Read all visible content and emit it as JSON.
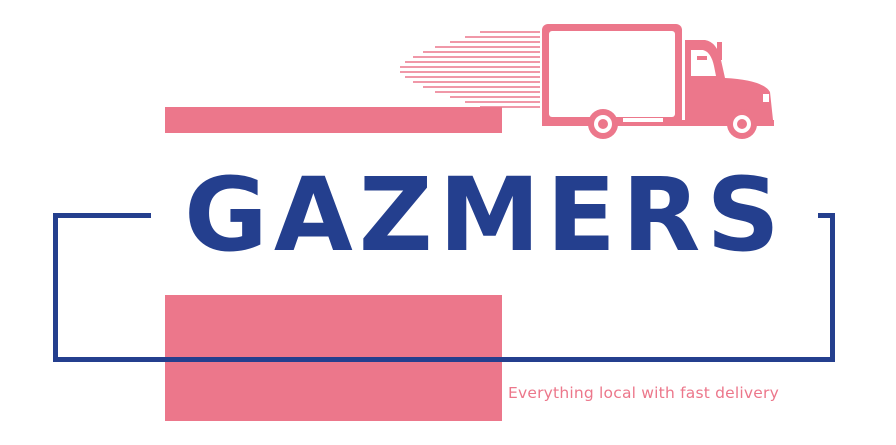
{
  "brand": {
    "name": "GAZMERS",
    "tagline": "Everything local with fast delivery"
  },
  "icons": {
    "truck": "delivery-truck-icon",
    "speed_lines": "speed-lines-icon"
  },
  "colors": {
    "primary_blue": "#243f8e",
    "accent_pink": "#ec778b",
    "background": "#ffffff"
  }
}
